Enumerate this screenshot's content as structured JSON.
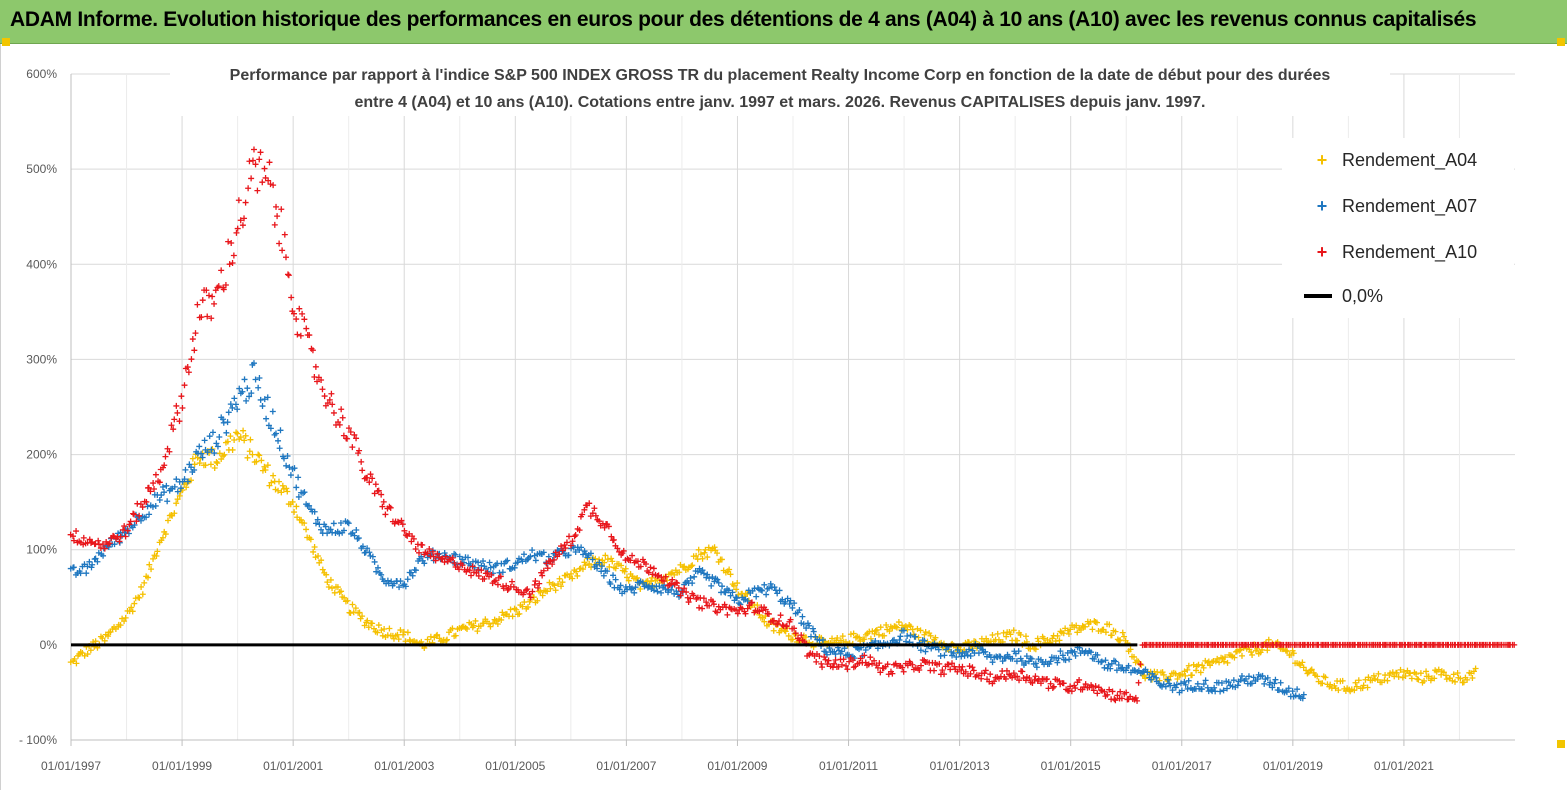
{
  "banner": {
    "title": "ADAM Informe. Evolution historique des performances en euros pour des détentions de 4 ans (A04) à 10 ans (A10) avec les revenus connus capitalisés",
    "color": "#8dc86c"
  },
  "chart_data": {
    "type": "scatter",
    "title_line1": "Performance par rapport à l'indice S&P 500 INDEX GROSS TR  du placement Realty Income Corp en fonction de la date de début pour des durées",
    "title_line2": "entre 4 (A04) et 10 ans (A10). Cotations entre janv. 1997 et mars. 2026. Revenus CAPITALISES depuis janv. 1997.",
    "ylim": [
      -100,
      600
    ],
    "yticks": [
      "- 100%",
      "0%",
      "100%",
      "200%",
      "300%",
      "400%",
      "500%",
      "600%"
    ],
    "ytick_values": [
      -100,
      0,
      100,
      200,
      300,
      400,
      500,
      600
    ],
    "xlim": [
      "1997-01-01",
      "2023-01-01"
    ],
    "xticks": [
      "01/01/1997",
      "01/01/1999",
      "01/01/2001",
      "01/01/2003",
      "01/01/2005",
      "01/01/2007",
      "01/01/2009",
      "01/01/2011",
      "01/01/2013",
      "01/01/2015",
      "01/01/2017",
      "01/01/2019",
      "01/01/2021"
    ],
    "xtick_years": [
      1997,
      1999,
      2001,
      2003,
      2005,
      2007,
      2009,
      2011,
      2013,
      2015,
      2017,
      2019,
      2021
    ],
    "grid": "vertical and horizontal",
    "legend_position": "top-right",
    "marker": "+",
    "series": [
      {
        "name": "Rendement_A04",
        "color": "#f5c000",
        "points": [
          [
            1997.0,
            -20
          ],
          [
            1997.3,
            -5
          ],
          [
            1997.6,
            5
          ],
          [
            1998.0,
            30
          ],
          [
            1998.3,
            60
          ],
          [
            1998.6,
            110
          ],
          [
            1999.0,
            160
          ],
          [
            1999.3,
            200
          ],
          [
            1999.6,
            195
          ],
          [
            2000.0,
            220
          ],
          [
            2000.3,
            200
          ],
          [
            2000.6,
            175
          ],
          [
            2001.0,
            150
          ],
          [
            2001.3,
            110
          ],
          [
            2001.6,
            70
          ],
          [
            2002.0,
            40
          ],
          [
            2002.3,
            25
          ],
          [
            2002.6,
            15
          ],
          [
            2003.0,
            10
          ],
          [
            2003.3,
            0
          ],
          [
            2003.6,
            5
          ],
          [
            2004.0,
            15
          ],
          [
            2004.3,
            20
          ],
          [
            2004.6,
            25
          ],
          [
            2005.0,
            35
          ],
          [
            2005.3,
            45
          ],
          [
            2005.6,
            60
          ],
          [
            2006.0,
            70
          ],
          [
            2006.3,
            85
          ],
          [
            2006.6,
            90
          ],
          [
            2007.0,
            75
          ],
          [
            2007.3,
            60
          ],
          [
            2007.6,
            70
          ],
          [
            2008.0,
            80
          ],
          [
            2008.3,
            95
          ],
          [
            2008.6,
            100
          ],
          [
            2009.0,
            60
          ],
          [
            2009.3,
            40
          ],
          [
            2009.6,
            20
          ],
          [
            2010.0,
            10
          ],
          [
            2010.3,
            5
          ],
          [
            2010.6,
            0
          ],
          [
            2011.0,
            5
          ],
          [
            2011.3,
            10
          ],
          [
            2011.6,
            15
          ],
          [
            2012.0,
            20
          ],
          [
            2012.3,
            10
          ],
          [
            2012.6,
            5
          ],
          [
            2013.0,
            -5
          ],
          [
            2013.3,
            0
          ],
          [
            2013.6,
            5
          ],
          [
            2014.0,
            10
          ],
          [
            2014.3,
            0
          ],
          [
            2014.6,
            5
          ],
          [
            2015.0,
            15
          ],
          [
            2015.3,
            20
          ],
          [
            2015.6,
            20
          ],
          [
            2016.0,
            5
          ],
          [
            2016.3,
            -30
          ],
          [
            2016.6,
            -35
          ],
          [
            2017.0,
            -30
          ],
          [
            2017.3,
            -25
          ],
          [
            2017.6,
            -20
          ],
          [
            2018.0,
            -10
          ],
          [
            2018.3,
            -5
          ],
          [
            2018.6,
            0
          ],
          [
            2019.0,
            -10
          ],
          [
            2019.3,
            -30
          ],
          [
            2019.6,
            -40
          ],
          [
            2020.0,
            -45
          ],
          [
            2020.3,
            -40
          ],
          [
            2020.6,
            -35
          ],
          [
            2021.0,
            -30
          ],
          [
            2021.3,
            -35
          ],
          [
            2021.6,
            -30
          ],
          [
            2022.0,
            -35
          ],
          [
            2022.3,
            -30
          ]
        ]
      },
      {
        "name": "Rendement_A07",
        "color": "#1f77c0",
        "points": [
          [
            1997.0,
            75
          ],
          [
            1997.3,
            80
          ],
          [
            1997.6,
            100
          ],
          [
            1998.0,
            120
          ],
          [
            1998.3,
            140
          ],
          [
            1998.6,
            155
          ],
          [
            1999.0,
            170
          ],
          [
            1999.3,
            200
          ],
          [
            1999.6,
            215
          ],
          [
            2000.0,
            260
          ],
          [
            2000.3,
            280
          ],
          [
            2000.6,
            240
          ],
          [
            2001.0,
            180
          ],
          [
            2001.3,
            140
          ],
          [
            2001.6,
            120
          ],
          [
            2002.0,
            125
          ],
          [
            2002.3,
            100
          ],
          [
            2002.6,
            70
          ],
          [
            2003.0,
            65
          ],
          [
            2003.3,
            90
          ],
          [
            2003.6,
            95
          ],
          [
            2004.0,
            90
          ],
          [
            2004.3,
            85
          ],
          [
            2004.6,
            80
          ],
          [
            2005.0,
            85
          ],
          [
            2005.3,
            95
          ],
          [
            2005.6,
            90
          ],
          [
            2006.0,
            100
          ],
          [
            2006.3,
            95
          ],
          [
            2006.6,
            75
          ],
          [
            2007.0,
            55
          ],
          [
            2007.3,
            65
          ],
          [
            2007.6,
            60
          ],
          [
            2008.0,
            55
          ],
          [
            2008.3,
            75
          ],
          [
            2008.6,
            65
          ],
          [
            2009.0,
            45
          ],
          [
            2009.3,
            55
          ],
          [
            2009.6,
            60
          ],
          [
            2010.0,
            40
          ],
          [
            2010.3,
            15
          ],
          [
            2010.6,
            -5
          ],
          [
            2011.0,
            -10
          ],
          [
            2011.3,
            -5
          ],
          [
            2011.6,
            0
          ],
          [
            2012.0,
            10
          ],
          [
            2012.3,
            0
          ],
          [
            2012.6,
            -5
          ],
          [
            2013.0,
            -10
          ],
          [
            2013.3,
            -5
          ],
          [
            2013.6,
            -15
          ],
          [
            2014.0,
            -10
          ],
          [
            2014.3,
            -20
          ],
          [
            2014.6,
            -15
          ],
          [
            2015.0,
            -10
          ],
          [
            2015.3,
            -5
          ],
          [
            2015.6,
            -20
          ],
          [
            2016.0,
            -25
          ],
          [
            2016.3,
            -30
          ],
          [
            2016.6,
            -40
          ],
          [
            2017.0,
            -45
          ],
          [
            2017.3,
            -40
          ],
          [
            2017.6,
            -45
          ],
          [
            2018.0,
            -40
          ],
          [
            2018.3,
            -35
          ],
          [
            2018.6,
            -40
          ],
          [
            2019.0,
            -50
          ],
          [
            2019.2,
            -52
          ]
        ]
      },
      {
        "name": "Rendement_A10",
        "color": "#e8161b",
        "points": [
          [
            1997.0,
            115
          ],
          [
            1997.3,
            110
          ],
          [
            1997.6,
            105
          ],
          [
            1998.0,
            120
          ],
          [
            1998.3,
            150
          ],
          [
            1998.6,
            180
          ],
          [
            1999.0,
            260
          ],
          [
            1999.3,
            350
          ],
          [
            1999.6,
            360
          ],
          [
            2000.0,
            440
          ],
          [
            2000.3,
            500
          ],
          [
            2000.6,
            480
          ],
          [
            2000.9,
            400
          ],
          [
            2001.1,
            340
          ],
          [
            2001.4,
            290
          ],
          [
            2001.7,
            250
          ],
          [
            2002.0,
            225
          ],
          [
            2002.3,
            180
          ],
          [
            2002.6,
            150
          ],
          [
            2003.0,
            120
          ],
          [
            2003.3,
            100
          ],
          [
            2003.6,
            90
          ],
          [
            2004.0,
            85
          ],
          [
            2004.3,
            75
          ],
          [
            2004.6,
            70
          ],
          [
            2005.0,
            60
          ],
          [
            2005.3,
            55
          ],
          [
            2005.6,
            85
          ],
          [
            2006.0,
            110
          ],
          [
            2006.3,
            145
          ],
          [
            2006.6,
            130
          ],
          [
            2007.0,
            90
          ],
          [
            2007.3,
            85
          ],
          [
            2007.6,
            75
          ],
          [
            2008.0,
            55
          ],
          [
            2008.3,
            45
          ],
          [
            2008.6,
            40
          ],
          [
            2009.0,
            35
          ],
          [
            2009.3,
            40
          ],
          [
            2009.6,
            30
          ],
          [
            2010.0,
            20
          ],
          [
            2010.3,
            -10
          ],
          [
            2010.6,
            -20
          ],
          [
            2011.0,
            -20
          ],
          [
            2011.3,
            -15
          ],
          [
            2011.6,
            -25
          ],
          [
            2012.0,
            -25
          ],
          [
            2012.3,
            -20
          ],
          [
            2012.6,
            -25
          ],
          [
            2013.0,
            -25
          ],
          [
            2013.3,
            -30
          ],
          [
            2013.6,
            -35
          ],
          [
            2014.0,
            -30
          ],
          [
            2014.3,
            -35
          ],
          [
            2014.6,
            -40
          ],
          [
            2015.0,
            -45
          ],
          [
            2015.3,
            -40
          ],
          [
            2015.6,
            -50
          ],
          [
            2016.0,
            -55
          ],
          [
            2016.2,
            -55
          ],
          [
            2016.3,
            0
          ],
          [
            2017.0,
            0
          ],
          [
            2018.0,
            0
          ],
          [
            2019.0,
            0
          ],
          [
            2020.0,
            0
          ],
          [
            2021.0,
            0
          ],
          [
            2022.0,
            0
          ],
          [
            2023.0,
            0
          ]
        ]
      },
      {
        "name": "0,0%",
        "color": "#000000",
        "style": "line",
        "value": 0,
        "x_range": [
          1997.0,
          2016.2
        ]
      }
    ]
  },
  "legend": {
    "items": [
      "Rendement_A04",
      "Rendement_A07",
      "Rendement_A10",
      "0,0%"
    ]
  }
}
